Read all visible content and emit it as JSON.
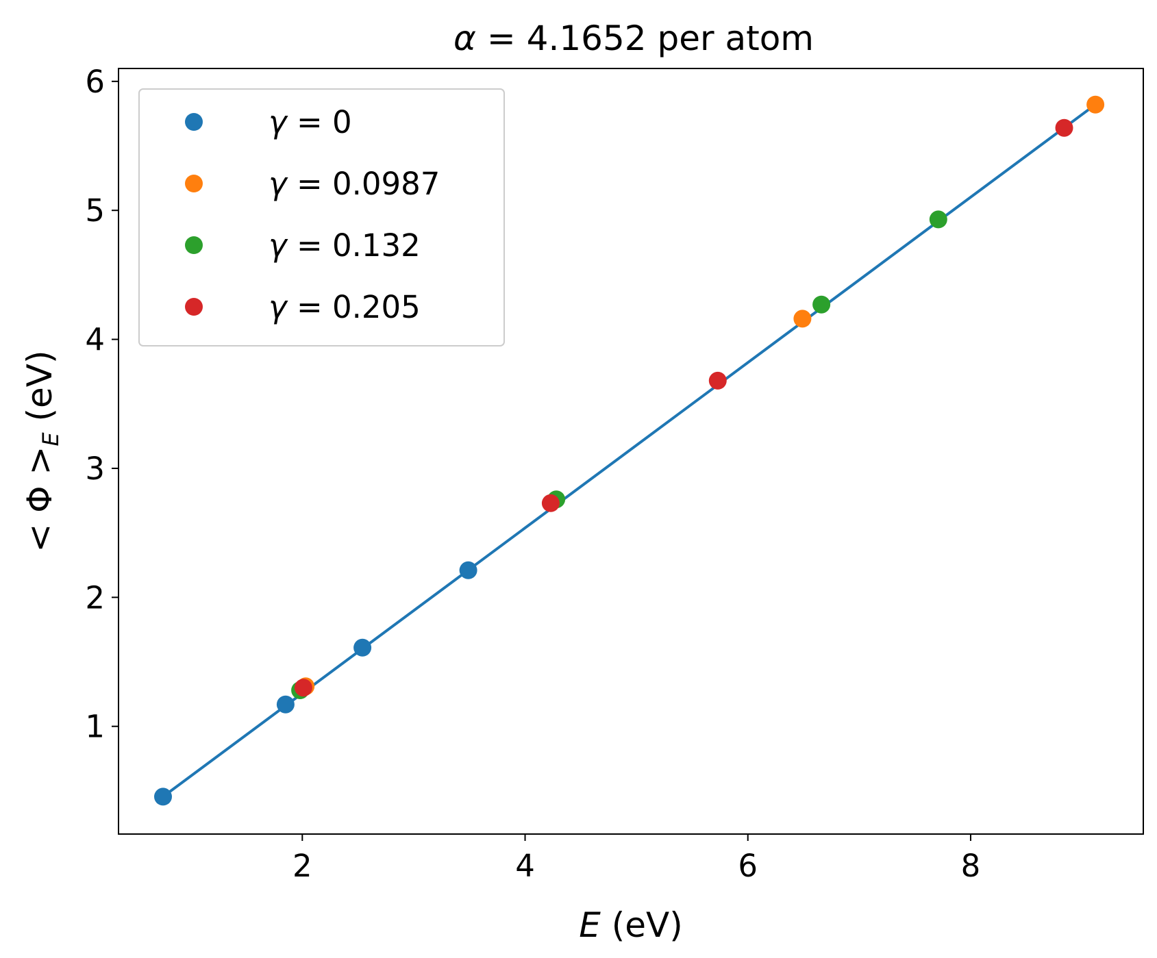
{
  "chart_data": {
    "type": "scatter",
    "title": {
      "prefix": "α",
      "rest": " = 4.1652 per atom"
    },
    "xlabel": {
      "italic": "E",
      "rest": " (eV)"
    },
    "ylabel": {
      "pre": "< Φ >",
      "sub": "E",
      "post": " (eV)"
    },
    "xlim": [
      0.35,
      9.55
    ],
    "ylim": [
      0.165,
      6.1
    ],
    "xticks": [
      2,
      4,
      6,
      8
    ],
    "yticks": [
      1,
      2,
      3,
      4,
      5,
      6
    ],
    "grid": false,
    "legend_position": "upper left",
    "fit_line": {
      "color": "#1f77b4",
      "x": [
        0.75,
        9.12
      ],
      "y": [
        0.455,
        5.82
      ]
    },
    "series": [
      {
        "name": "γ = 0",
        "legend_symbol": "γ",
        "legend_value": " = 0",
        "color": "#1f77b4",
        "x": [
          0.75,
          1.85,
          2.54,
          3.49
        ],
        "y": [
          0.455,
          1.17,
          1.61,
          2.21
        ]
      },
      {
        "name": "γ = 0.0987",
        "legend_symbol": "γ",
        "legend_value": " = 0.0987",
        "color": "#ff7f0e",
        "x": [
          2.03,
          6.49,
          9.12
        ],
        "y": [
          1.31,
          4.16,
          5.82
        ]
      },
      {
        "name": "γ = 0.132",
        "legend_symbol": "γ",
        "legend_value": " = 0.132",
        "color": "#2ca02c",
        "x": [
          1.98,
          4.28,
          6.66,
          7.71
        ],
        "y": [
          1.28,
          2.76,
          4.27,
          4.93
        ]
      },
      {
        "name": "γ = 0.205",
        "legend_symbol": "γ",
        "legend_value": " = 0.205",
        "color": "#d62728",
        "x": [
          2.01,
          4.23,
          5.73,
          8.84
        ],
        "y": [
          1.3,
          2.73,
          3.68,
          5.64
        ]
      }
    ]
  }
}
